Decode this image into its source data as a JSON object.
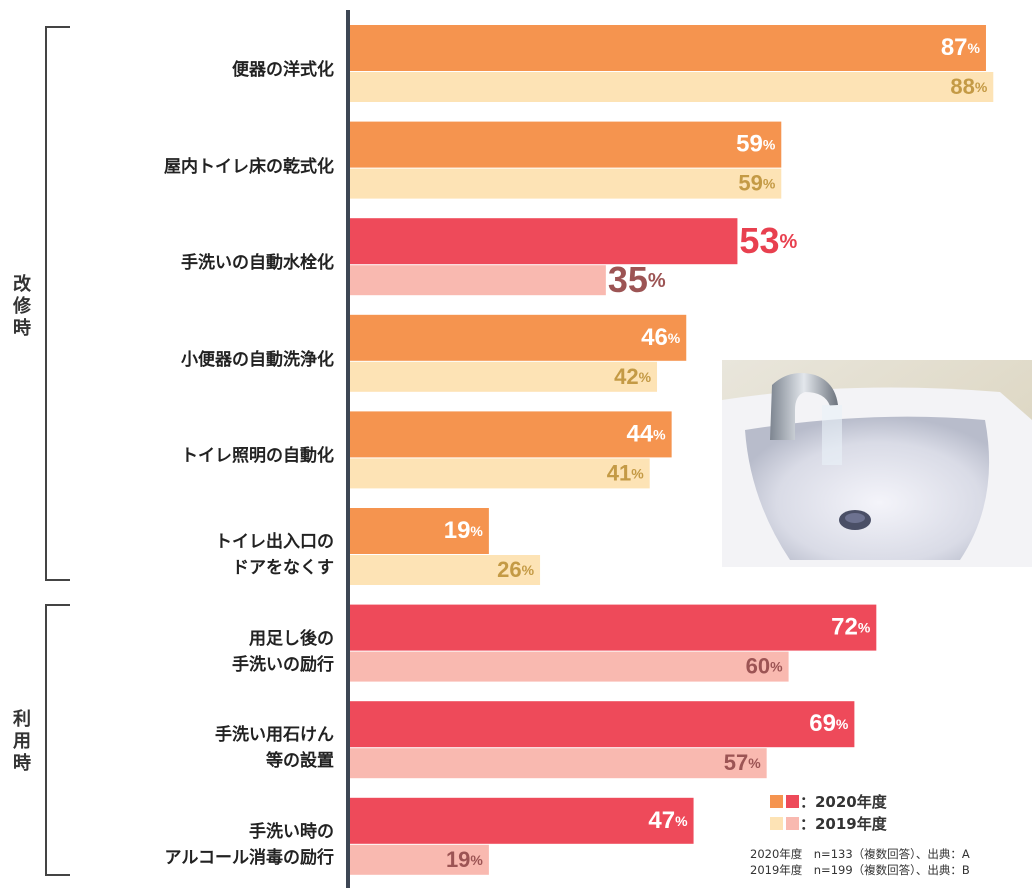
{
  "chart_data": {
    "type": "bar",
    "orientation": "horizontal",
    "categories": [
      "便器の洋式化",
      "屋内トイレ床の乾式化",
      "手洗いの自動水栓化",
      "小便器の自動洗浄化",
      "トイレ照明の自動化",
      "トイレ出入口の\nドアをなくす",
      "用足し後の\n手洗いの励行",
      "手洗い用石けん\n等の設置",
      "手洗い時の\nアルコール消毒の励行"
    ],
    "groups": [
      {
        "name": "改\n修\n時",
        "start": 0,
        "end": 5
      },
      {
        "name": "利\n用\n時",
        "start": 6,
        "end": 8
      }
    ],
    "highlight_category": 2,
    "xlim": [
      0,
      100
    ],
    "series": [
      {
        "name": "：2020年度",
        "values": [
          87,
          59,
          53,
          46,
          44,
          19,
          72,
          69,
          47
        ],
        "value_labels": [
          "87%",
          "59%",
          "53%",
          "46%",
          "44%",
          "19%",
          "72%",
          "69%",
          "47%"
        ],
        "colors": [
          "#f5944f",
          "#f5944f",
          "#ee4a5a",
          "#f5944f",
          "#f5944f",
          "#f5944f",
          "#ee4a5a",
          "#ee4a5a",
          "#ee4a5a"
        ],
        "legend_colors": [
          "#f5944f",
          "#ee4a5a"
        ]
      },
      {
        "name": "：2019年度",
        "values": [
          88,
          59,
          35,
          42,
          41,
          26,
          60,
          57,
          19
        ],
        "value_labels": [
          "88%",
          "59%",
          "35%",
          "42%",
          "41%",
          "26%",
          "60%",
          "57%",
          "19%"
        ],
        "colors": [
          "#fde3b5",
          "#fde3b5",
          "#f9b9b0",
          "#fde3b5",
          "#fde3b5",
          "#fde3b5",
          "#f9b9b0",
          "#f9b9b0",
          "#f9b9b0"
        ],
        "legend_colors": [
          "#fde3b5",
          "#f9b9b0"
        ]
      }
    ],
    "notes": [
      "2020年度　n=133（複数回答）、出典：A",
      "2019年度　n=199（複数回答）、出典：B"
    ]
  }
}
